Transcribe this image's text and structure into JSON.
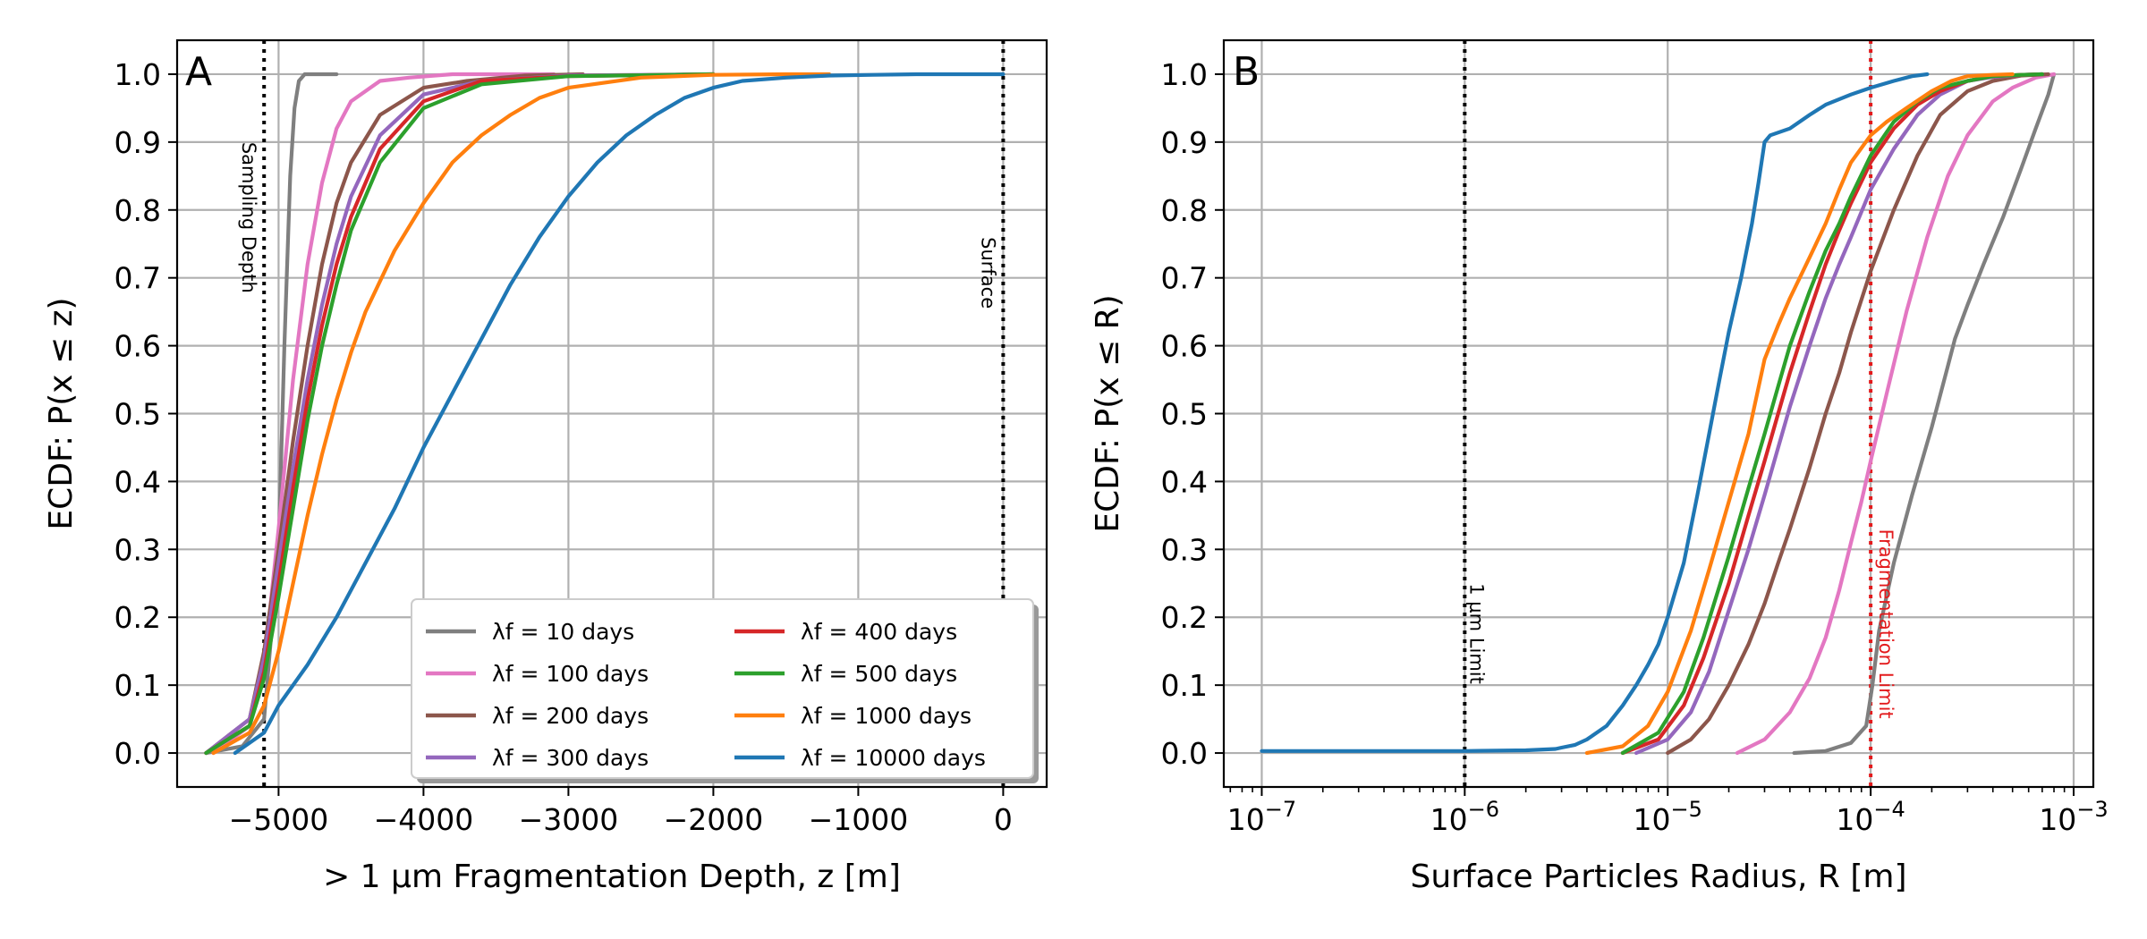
{
  "chart_data": [
    {
      "panel": "A",
      "type": "line",
      "title": "",
      "xlabel": "> 1 μm Fragmentation Depth, z [m]",
      "ylabel": "ECDF: P(x ≤ z)",
      "xlim": [
        -5700,
        300
      ],
      "ylim": [
        -0.05,
        1.05
      ],
      "xticks": [
        -5000,
        -4000,
        -3000,
        -2000,
        -1000,
        0
      ],
      "xtick_labels": [
        "−5000",
        "−4000",
        "−3000",
        "−2000",
        "−1000",
        "0"
      ],
      "yticks": [
        0.0,
        0.1,
        0.2,
        0.3,
        0.4,
        0.5,
        0.6,
        0.7,
        0.8,
        0.9,
        1.0
      ],
      "ytick_labels": [
        "0.0",
        "0.1",
        "0.2",
        "0.3",
        "0.4",
        "0.5",
        "0.6",
        "0.7",
        "0.8",
        "0.9",
        "1.0"
      ],
      "grid": true,
      "legend_position": "lower-right",
      "legend_columns": 2,
      "vlines": [
        {
          "x": -5100,
          "label": "Sampling Depth",
          "color": "#000000",
          "style": "dotted"
        },
        {
          "x": 0,
          "label": "Surface",
          "color": "#000000",
          "style": "dotted"
        }
      ],
      "series": [
        {
          "name": "λf = 10 days",
          "color": "#7f7f7f",
          "x": [
            -5500,
            -5250,
            -5100,
            -5000,
            -4960,
            -4920,
            -4890,
            -4860,
            -4820,
            -4700,
            -4600
          ],
          "y": [
            0.0,
            0.01,
            0.05,
            0.3,
            0.6,
            0.85,
            0.95,
            0.99,
            1.0,
            1.0,
            1.0
          ]
        },
        {
          "name": "λf = 100 days",
          "color": "#e377c2",
          "x": [
            -5450,
            -5200,
            -5100,
            -5000,
            -4900,
            -4800,
            -4700,
            -4600,
            -4500,
            -4300,
            -4100,
            -3800,
            -3100
          ],
          "y": [
            0.0,
            0.04,
            0.13,
            0.33,
            0.55,
            0.72,
            0.84,
            0.92,
            0.96,
            0.99,
            0.995,
            1.0,
            1.0
          ]
        },
        {
          "name": "λf = 200 days",
          "color": "#8c564b",
          "x": [
            -5500,
            -5200,
            -5100,
            -5000,
            -4900,
            -4800,
            -4700,
            -4600,
            -4500,
            -4300,
            -4000,
            -3700,
            -3300,
            -2900
          ],
          "y": [
            0.0,
            0.05,
            0.15,
            0.3,
            0.46,
            0.6,
            0.72,
            0.81,
            0.87,
            0.94,
            0.98,
            0.99,
            0.998,
            1.0
          ]
        },
        {
          "name": "λf = 300 days",
          "color": "#9467bd",
          "x": [
            -5500,
            -5200,
            -5100,
            -5000,
            -4900,
            -4800,
            -4700,
            -4600,
            -4500,
            -4300,
            -4000,
            -3600,
            -3000,
            -2000
          ],
          "y": [
            0.0,
            0.05,
            0.14,
            0.28,
            0.42,
            0.55,
            0.66,
            0.75,
            0.82,
            0.91,
            0.97,
            0.99,
            0.998,
            1.0
          ]
        },
        {
          "name": "λf = 400 days",
          "color": "#d62728",
          "x": [
            -5500,
            -5200,
            -5100,
            -5000,
            -4900,
            -4800,
            -4700,
            -4600,
            -4500,
            -4300,
            -4000,
            -3600,
            -3000,
            -2000
          ],
          "y": [
            0.0,
            0.04,
            0.12,
            0.25,
            0.39,
            0.52,
            0.63,
            0.72,
            0.79,
            0.89,
            0.96,
            0.99,
            0.997,
            1.0
          ]
        },
        {
          "name": "λf = 500 days",
          "color": "#2ca02c",
          "x": [
            -5500,
            -5200,
            -5100,
            -5000,
            -4900,
            -4800,
            -4700,
            -4600,
            -4500,
            -4300,
            -4000,
            -3600,
            -3000,
            -2000
          ],
          "y": [
            0.0,
            0.04,
            0.11,
            0.23,
            0.36,
            0.49,
            0.6,
            0.69,
            0.77,
            0.87,
            0.95,
            0.985,
            0.997,
            1.0
          ]
        },
        {
          "name": "λf = 1000 days",
          "color": "#ff7f0e",
          "x": [
            -5450,
            -5200,
            -5100,
            -5000,
            -4900,
            -4800,
            -4700,
            -4600,
            -4500,
            -4400,
            -4200,
            -4000,
            -3800,
            -3600,
            -3400,
            -3200,
            -3000,
            -2500,
            -2000,
            -1500,
            -1200
          ],
          "y": [
            0.0,
            0.03,
            0.07,
            0.15,
            0.25,
            0.35,
            0.44,
            0.52,
            0.59,
            0.65,
            0.74,
            0.81,
            0.87,
            0.91,
            0.94,
            0.965,
            0.98,
            0.995,
            0.999,
            1.0,
            1.0
          ]
        },
        {
          "name": "λf = 10000 days",
          "color": "#1f77b4",
          "x": [
            -5300,
            -5100,
            -5000,
            -4800,
            -4600,
            -4400,
            -4200,
            -4000,
            -3800,
            -3600,
            -3400,
            -3200,
            -3000,
            -2800,
            -2600,
            -2400,
            -2200,
            -2000,
            -1800,
            -1500,
            -1200,
            -900,
            -600,
            -300,
            0
          ],
          "y": [
            0.0,
            0.03,
            0.07,
            0.13,
            0.2,
            0.28,
            0.36,
            0.45,
            0.53,
            0.61,
            0.69,
            0.76,
            0.82,
            0.87,
            0.91,
            0.94,
            0.965,
            0.98,
            0.99,
            0.995,
            0.998,
            0.999,
            1.0,
            1.0,
            1.0
          ]
        }
      ]
    },
    {
      "panel": "B",
      "type": "line",
      "title": "",
      "xlabel": "Surface Particles Radius, R [m]",
      "ylabel": "ECDF: P(x ≤ R)",
      "xscale": "log",
      "xlim": [
        6.5e-08,
        0.00125
      ],
      "ylim": [
        -0.05,
        1.05
      ],
      "xticks": [
        1e-07,
        1e-06,
        1e-05,
        0.0001,
        0.001
      ],
      "xtick_labels": [
        {
          "base": "10",
          "exp": "−7"
        },
        {
          "base": "10",
          "exp": "−6"
        },
        {
          "base": "10",
          "exp": "−5"
        },
        {
          "base": "10",
          "exp": "−4"
        },
        {
          "base": "10",
          "exp": "−3"
        }
      ],
      "yticks": [
        0.0,
        0.1,
        0.2,
        0.3,
        0.4,
        0.5,
        0.6,
        0.7,
        0.8,
        0.9,
        1.0
      ],
      "ytick_labels": [
        "0.0",
        "0.1",
        "0.2",
        "0.3",
        "0.4",
        "0.5",
        "0.6",
        "0.7",
        "0.8",
        "0.9",
        "1.0"
      ],
      "grid": true,
      "vlines": [
        {
          "x": 1e-06,
          "label": "1 μm Limit",
          "color": "#000000",
          "style": "dotted"
        },
        {
          "x": 0.0001,
          "label": "Fragmentation Limit",
          "color": "#e31a1c",
          "style": "dotted"
        }
      ],
      "series": [
        {
          "name": "λf = 10 days",
          "color": "#7f7f7f",
          "x": [
            4.2e-05,
            6e-05,
            8e-05,
            9.5e-05,
            0.000102,
            0.00011,
            0.00013,
            0.00016,
            0.0002,
            0.00024,
            0.00026,
            0.0003,
            0.00036,
            0.00045,
            0.00055,
            0.00065,
            0.00075,
            0.0008
          ],
          "y": [
            0.0,
            0.003,
            0.015,
            0.04,
            0.1,
            0.18,
            0.28,
            0.38,
            0.48,
            0.57,
            0.61,
            0.66,
            0.72,
            0.79,
            0.86,
            0.92,
            0.97,
            1.0
          ]
        },
        {
          "name": "λf = 100 days",
          "color": "#e377c2",
          "x": [
            2.2e-05,
            3e-05,
            4e-05,
            5e-05,
            6e-05,
            7e-05,
            8e-05,
            9e-05,
            0.0001,
            0.00012,
            0.00015,
            0.00019,
            0.00024,
            0.0003,
            0.0004,
            0.0005,
            0.00065,
            0.0008
          ],
          "y": [
            0.0,
            0.02,
            0.06,
            0.11,
            0.17,
            0.24,
            0.31,
            0.37,
            0.43,
            0.53,
            0.65,
            0.76,
            0.85,
            0.91,
            0.96,
            0.98,
            0.995,
            1.0
          ]
        },
        {
          "name": "λf = 200 days",
          "color": "#8c564b",
          "x": [
            1e-05,
            1.3e-05,
            1.6e-05,
            2e-05,
            2.5e-05,
            3e-05,
            3.5e-05,
            4e-05,
            5e-05,
            6e-05,
            7e-05,
            8e-05,
            0.0001,
            0.00013,
            0.00017,
            0.00022,
            0.0003,
            0.0004,
            0.00055,
            0.00075
          ],
          "y": [
            0.0,
            0.02,
            0.05,
            0.1,
            0.16,
            0.22,
            0.28,
            0.33,
            0.42,
            0.5,
            0.56,
            0.62,
            0.71,
            0.8,
            0.88,
            0.94,
            0.975,
            0.99,
            0.998,
            1.0
          ]
        },
        {
          "name": "λf = 300 days",
          "color": "#9467bd",
          "x": [
            7e-06,
            1e-05,
            1.3e-05,
            1.6e-05,
            2e-05,
            2.5e-05,
            3e-05,
            3.5e-05,
            4e-05,
            5e-05,
            6e-05,
            7e-05,
            8e-05,
            0.0001,
            0.00013,
            0.00017,
            0.00022,
            0.0003,
            0.0004,
            0.00055,
            0.0007
          ],
          "y": [
            0.0,
            0.02,
            0.06,
            0.12,
            0.21,
            0.3,
            0.38,
            0.45,
            0.51,
            0.6,
            0.67,
            0.72,
            0.76,
            0.83,
            0.89,
            0.94,
            0.97,
            0.99,
            0.996,
            0.999,
            1.0
          ]
        },
        {
          "name": "λf = 400 days",
          "color": "#d62728",
          "x": [
            6e-06,
            9e-06,
            1.2e-05,
            1.5e-05,
            2e-05,
            2.5e-05,
            3e-05,
            3.5e-05,
            4e-05,
            5e-05,
            6e-05,
            7e-05,
            8e-05,
            0.0001,
            0.00013,
            0.00017,
            0.00022,
            0.0003,
            0.0004,
            0.00055,
            0.0007
          ],
          "y": [
            0.0,
            0.02,
            0.07,
            0.14,
            0.25,
            0.35,
            0.43,
            0.5,
            0.56,
            0.65,
            0.72,
            0.77,
            0.81,
            0.87,
            0.92,
            0.955,
            0.975,
            0.99,
            0.997,
            0.999,
            1.0
          ]
        },
        {
          "name": "λf = 500 days",
          "color": "#2ca02c",
          "x": [
            6e-06,
            9e-06,
            1.2e-05,
            1.5e-05,
            2e-05,
            2.5e-05,
            3e-05,
            3.5e-05,
            4e-05,
            5e-05,
            6e-05,
            7e-05,
            8e-05,
            0.0001,
            0.00013,
            0.00017,
            0.00022,
            0.0003,
            0.0004,
            0.00055,
            0.0007
          ],
          "y": [
            0.0,
            0.03,
            0.09,
            0.17,
            0.29,
            0.39,
            0.47,
            0.54,
            0.6,
            0.68,
            0.74,
            0.78,
            0.82,
            0.88,
            0.93,
            0.96,
            0.98,
            0.99,
            0.997,
            0.999,
            1.0
          ]
        },
        {
          "name": "λf = 1000 days",
          "color": "#ff7f0e",
          "x": [
            4e-06,
            6e-06,
            8e-06,
            1e-05,
            1.3e-05,
            1.6e-05,
            2e-05,
            2.5e-05,
            3e-05,
            3.5e-05,
            4e-05,
            5e-05,
            6e-05,
            7e-05,
            8e-05,
            0.0001,
            0.00012,
            0.00015,
            0.0002,
            0.00025,
            0.0003,
            0.0004,
            0.0005
          ],
          "y": [
            0.0,
            0.01,
            0.04,
            0.09,
            0.18,
            0.27,
            0.37,
            0.47,
            0.58,
            0.63,
            0.67,
            0.73,
            0.78,
            0.83,
            0.87,
            0.91,
            0.93,
            0.95,
            0.975,
            0.99,
            0.997,
            0.999,
            1.0
          ]
        },
        {
          "name": "λf = 10000 days",
          "color": "#1f77b4",
          "x": [
            1e-07,
            3e-07,
            1e-06,
            2e-06,
            2.8e-06,
            3e-06,
            3.5e-06,
            4e-06,
            5e-06,
            6e-06,
            7e-06,
            8e-06,
            9e-06,
            1e-05,
            1.2e-05,
            1.4e-05,
            1.6e-05,
            1.8e-05,
            2e-05,
            2.3e-05,
            2.6e-05,
            2.8e-05,
            3e-05,
            3.2e-05,
            4e-05,
            5e-05,
            6e-05,
            8e-05,
            0.0001,
            0.00013,
            0.00016,
            0.00019
          ],
          "y": [
            0.003,
            0.003,
            0.003,
            0.004,
            0.006,
            0.008,
            0.012,
            0.02,
            0.04,
            0.07,
            0.1,
            0.13,
            0.16,
            0.2,
            0.28,
            0.38,
            0.47,
            0.55,
            0.62,
            0.7,
            0.78,
            0.84,
            0.9,
            0.91,
            0.92,
            0.94,
            0.955,
            0.97,
            0.98,
            0.99,
            0.997,
            1.0
          ]
        }
      ]
    }
  ]
}
